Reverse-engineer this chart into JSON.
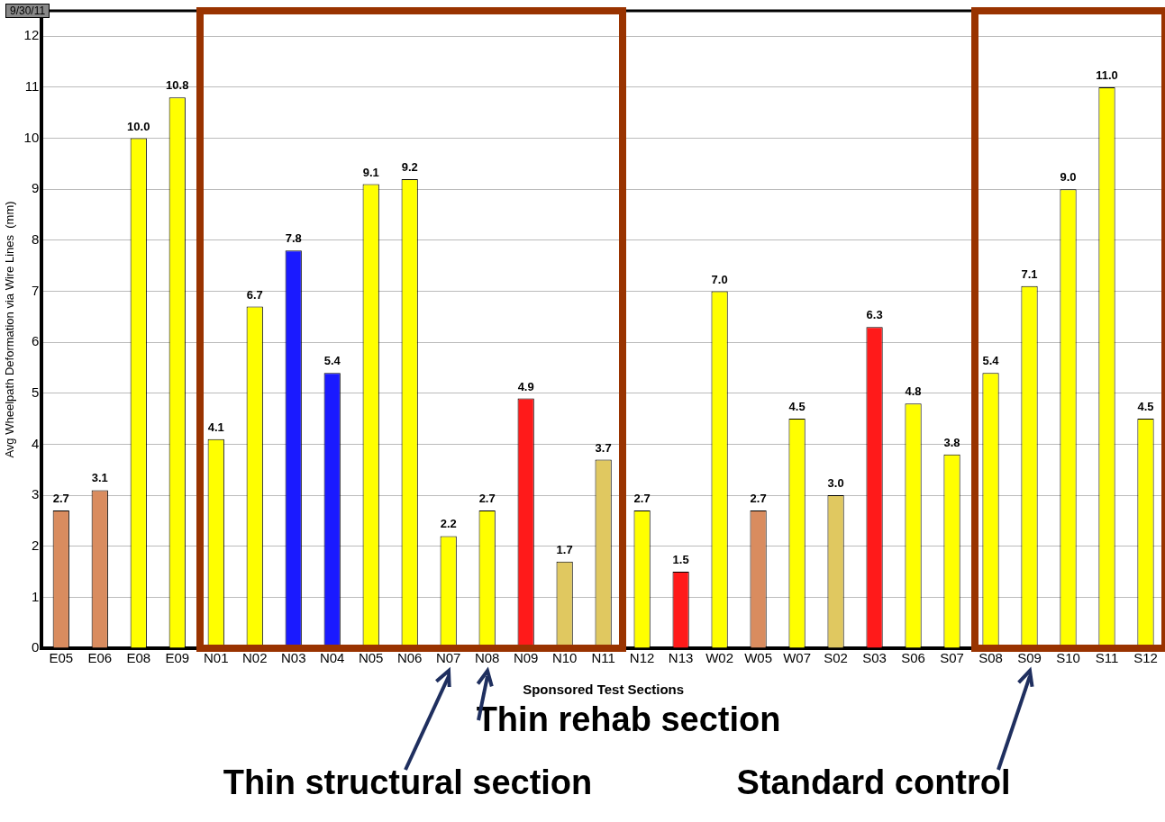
{
  "chart_data": {
    "type": "bar",
    "ylabel": "Avg Wheelpath Deformation via Wire Lines  (mm)",
    "xlabel": "Sponsored Test Sections",
    "categories": [
      "E05",
      "E06",
      "E08",
      "E09",
      "N01",
      "N02",
      "N03",
      "N04",
      "N05",
      "N06",
      "N07",
      "N08",
      "N09",
      "N10",
      "N11",
      "N12",
      "N13",
      "W02",
      "W05",
      "W07",
      "S02",
      "S03",
      "S06",
      "S07",
      "S08",
      "S09",
      "S10",
      "S11",
      "S12"
    ],
    "values": [
      2.7,
      3.1,
      10.0,
      10.8,
      4.1,
      6.7,
      7.8,
      5.4,
      9.1,
      9.2,
      2.2,
      2.7,
      4.9,
      1.7,
      3.7,
      2.7,
      1.5,
      7.0,
      2.7,
      4.5,
      3.0,
      6.3,
      4.8,
      3.8,
      5.4,
      7.1,
      9.0,
      11.0,
      4.5
    ],
    "value_labels": [
      "2.7",
      "3.1",
      "10.0",
      "10.8",
      "4.1",
      "6.7",
      "7.8",
      "5.4",
      "9.1",
      "9.2",
      "2.2",
      "2.7",
      "4.9",
      "1.7",
      "3.7",
      "2.7",
      "1.5",
      "7.0",
      "2.7",
      "4.5",
      "3.0",
      "6.3",
      "4.8",
      "3.8",
      "5.4",
      "7.1",
      "9.0",
      "11.0",
      "4.5"
    ],
    "colors": [
      "#d98c5f",
      "#d98c5f",
      "#ffff00",
      "#ffff00",
      "#ffff00",
      "#ffff00",
      "#1a1aff",
      "#1a1aff",
      "#ffff00",
      "#ffff00",
      "#ffff00",
      "#ffff00",
      "#ff1a1a",
      "#e0c860",
      "#e0c860",
      "#ffff00",
      "#ff1a1a",
      "#ffff00",
      "#d98c5f",
      "#ffff00",
      "#e0c860",
      "#ff1a1a",
      "#ffff00",
      "#ffff00",
      "#ffff00",
      "#ffff00",
      "#ffff00",
      "#ffff00",
      "#ffff00"
    ],
    "ylim": [
      0,
      12.5
    ],
    "yticks": [
      0,
      1,
      2,
      3,
      4,
      5,
      6,
      7,
      8,
      9,
      10,
      11,
      12
    ],
    "grid": "y",
    "legend": false,
    "annotations": [
      "9/30/11",
      "Thin rehab section",
      "Thin structural section",
      "Standard control"
    ]
  }
}
